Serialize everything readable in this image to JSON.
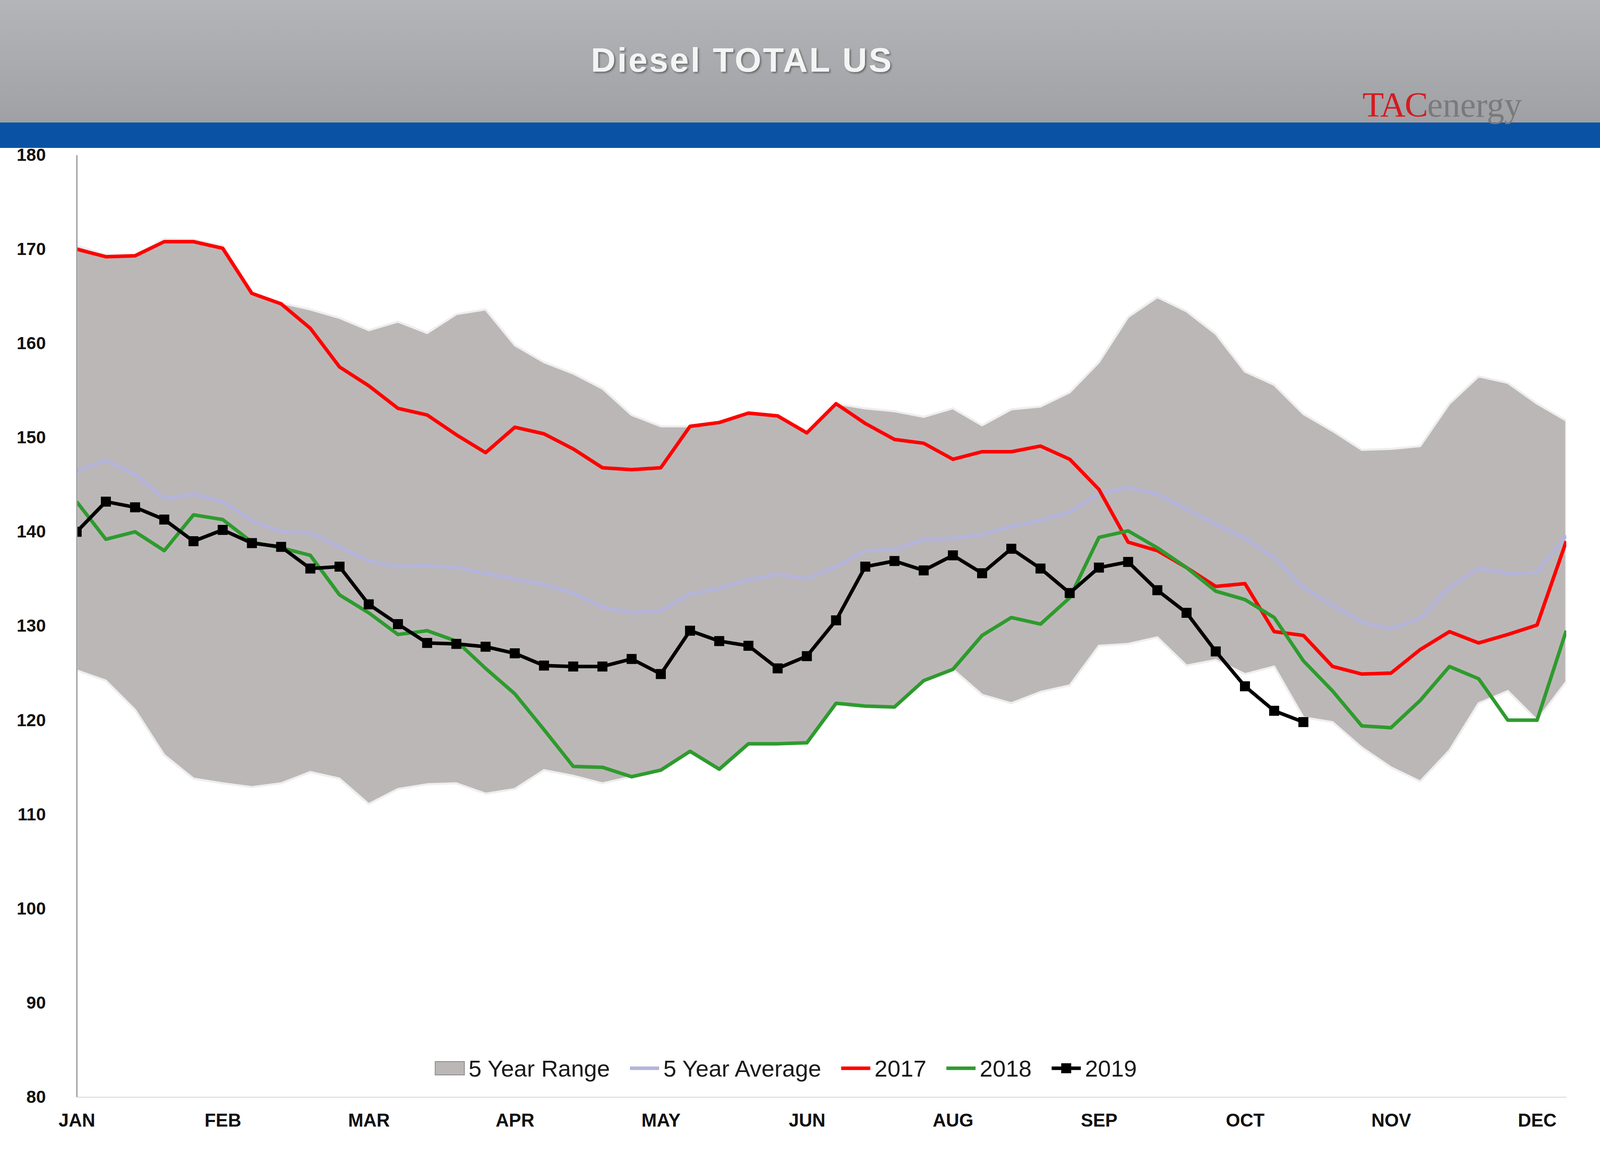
{
  "chart_data": {
    "type": "line",
    "title": "Diesel TOTAL US",
    "logo": "TACenergy",
    "categories": [
      "JAN",
      null,
      null,
      null,
      null,
      "FEB",
      null,
      null,
      null,
      null,
      "MAR",
      null,
      null,
      null,
      null,
      "APR",
      null,
      null,
      null,
      null,
      "MAY",
      null,
      null,
      null,
      null,
      "JUN",
      null,
      null,
      null,
      null,
      "AUG",
      null,
      null,
      null,
      null,
      "SEP",
      null,
      null,
      null,
      null,
      "OCT",
      null,
      null,
      null,
      null,
      "NOV",
      null,
      null,
      null,
      null,
      "DEC",
      null
    ],
    "ylim": [
      80,
      180
    ],
    "yticks": [
      80,
      90,
      100,
      110,
      120,
      130,
      140,
      150,
      160,
      170,
      180
    ],
    "grid": false,
    "legend": "bottom",
    "series": [
      {
        "name": "5 Year Range",
        "type": "area",
        "color": "#bcb7b7",
        "high": [
          170.4,
          169.4,
          169.4,
          171.1,
          171.0,
          170.4,
          165.2,
          164.3,
          163.6,
          162.7,
          161.4,
          162.3,
          161.1,
          163.1,
          163.6,
          159.8,
          158.0,
          156.8,
          155.2,
          152.4,
          151.2,
          151.2,
          151.6,
          152.6,
          152.3,
          150.5,
          153.6,
          153.1,
          152.8,
          152.2,
          153.1,
          151.3,
          153.0,
          153.3,
          154.8,
          158.0,
          162.8,
          164.9,
          163.4,
          161.0,
          157.0,
          155.6,
          152.5,
          150.7,
          148.7,
          148.8,
          149.1,
          153.6,
          156.5,
          155.8,
          153.6,
          151.8
        ],
        "low": [
          125.3,
          124.2,
          121.1,
          116.3,
          113.8,
          113.3,
          112.9,
          113.3,
          114.5,
          113.8,
          111.1,
          112.7,
          113.2,
          113.3,
          112.2,
          112.7,
          114.7,
          114.1,
          113.3,
          114.0,
          114.7,
          116.7,
          114.8,
          117.5,
          117.5,
          117.6,
          121.8,
          121.5,
          121.4,
          124.2,
          125.4,
          122.7,
          121.8,
          123.0,
          123.7,
          127.9,
          128.1,
          128.8,
          125.8,
          126.4,
          124.9,
          125.7,
          120.3,
          119.8,
          117.1,
          115.0,
          113.5,
          116.8,
          121.8,
          123.1,
          120.0,
          124.1
        ]
      },
      {
        "name": "5 Year Average",
        "type": "line",
        "color": "#b4b4dc",
        "values": [
          146.5,
          147.6,
          146.1,
          143.5,
          144.0,
          143.2,
          141.2,
          140.0,
          139.9,
          138.4,
          136.9,
          136.3,
          136.4,
          136.2,
          135.6,
          135.0,
          134.4,
          133.5,
          132.0,
          131.4,
          131.6,
          133.4,
          134.0,
          134.9,
          135.5,
          135.0,
          136.3,
          138.0,
          138.1,
          139.2,
          139.3,
          139.7,
          140.6,
          141.2,
          142.1,
          144.0,
          144.7,
          144.0,
          142.4,
          140.8,
          139.3,
          137.3,
          134.1,
          132.2,
          130.4,
          129.7,
          130.8,
          134.1,
          136.1,
          135.6,
          135.7,
          139.6
        ]
      },
      {
        "name": "2017",
        "type": "line",
        "color": "#ff0000",
        "values": [
          170.0,
          169.2,
          169.3,
          170.8,
          170.8,
          170.1,
          165.3,
          164.2,
          161.6,
          157.5,
          155.5,
          153.1,
          152.4,
          150.3,
          148.4,
          151.1,
          150.4,
          148.8,
          146.8,
          146.6,
          146.8,
          151.2,
          151.6,
          152.6,
          152.3,
          150.5,
          153.6,
          151.5,
          149.8,
          149.4,
          147.7,
          148.5,
          148.5,
          149.1,
          147.7,
          144.5,
          138.9,
          138.0,
          136.2,
          134.2,
          134.5,
          129.4,
          129.0,
          125.7,
          124.9,
          125.0,
          127.5,
          129.4,
          128.2,
          129.1,
          130.1,
          139.0
        ]
      },
      {
        "name": "2018",
        "type": "line",
        "color": "#2e9b2e",
        "values": [
          143.2,
          139.2,
          140.0,
          138.0,
          141.8,
          141.3,
          138.9,
          138.3,
          137.5,
          133.3,
          131.4,
          129.1,
          129.5,
          128.4,
          125.5,
          122.8,
          119.0,
          115.1,
          115.0,
          114.0,
          114.7,
          116.7,
          114.8,
          117.5,
          117.5,
          117.6,
          121.8,
          121.5,
          121.4,
          124.2,
          125.4,
          129.0,
          130.9,
          130.2,
          133.0,
          139.4,
          140.1,
          138.3,
          136.2,
          133.7,
          132.8,
          130.9,
          126.3,
          123.1,
          119.4,
          119.2,
          122.1,
          125.7,
          124.4,
          120.0,
          120.0,
          129.5
        ]
      },
      {
        "name": "2019",
        "type": "line",
        "color": "#000000",
        "marker": "square",
        "values": [
          140.0,
          143.2,
          142.6,
          141.3,
          139.0,
          140.2,
          138.8,
          138.4,
          136.1,
          136.3,
          132.3,
          130.2,
          128.2,
          128.1,
          127.8,
          127.1,
          125.8,
          125.7,
          125.7,
          126.5,
          124.9,
          129.5,
          128.4,
          127.9,
          125.5,
          126.8,
          130.6,
          136.3,
          136.9,
          135.9,
          137.5,
          135.6,
          138.2,
          136.1,
          133.5,
          136.2,
          136.8,
          133.8,
          131.4,
          127.3,
          123.6,
          121.0,
          119.8,
          null,
          null,
          null,
          null,
          null,
          null,
          null,
          null,
          null
        ]
      }
    ]
  }
}
